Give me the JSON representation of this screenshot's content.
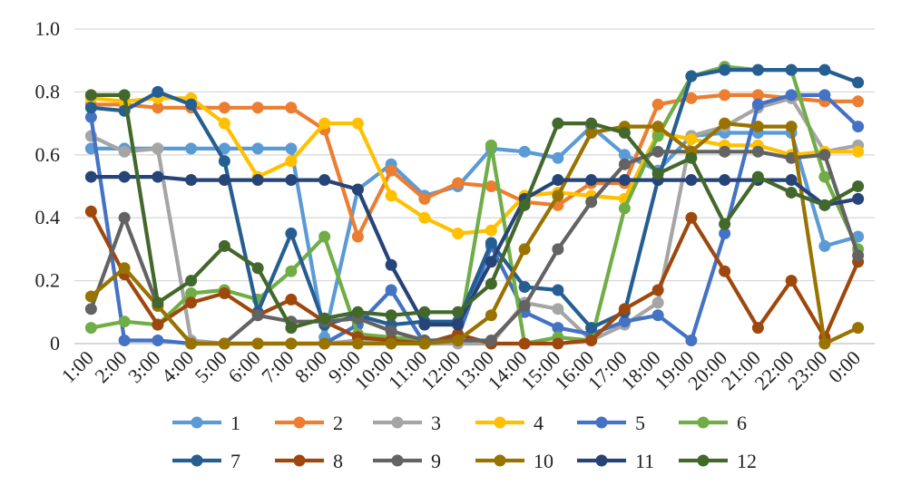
{
  "chart_data": {
    "type": "line",
    "title": "",
    "xlabel": "",
    "ylabel": "",
    "ylim": [
      0,
      1.0
    ],
    "yticks": [
      "0",
      "0.2",
      "0.4",
      "0.6",
      "0.8",
      "1.0"
    ],
    "grid": true,
    "legend_position": "bottom",
    "x": [
      "1:00",
      "2:00",
      "3:00",
      "4:00",
      "5:00",
      "6:00",
      "7:00",
      "8:00",
      "9:00",
      "10:00",
      "11:00",
      "12:00",
      "13:00",
      "14:00",
      "15:00",
      "16:00",
      "17:00",
      "18:00",
      "19:00",
      "20:00",
      "21:00",
      "22:00",
      "23:00",
      "0:00"
    ],
    "series": [
      {
        "name": "1",
        "color": "#5B9BD5",
        "values": [
          0.62,
          0.62,
          0.62,
          0.62,
          0.62,
          0.62,
          0.62,
          0.02,
          0.49,
          0.57,
          0.47,
          0.5,
          0.62,
          0.61,
          0.59,
          0.69,
          0.6,
          0.55,
          0.66,
          0.67,
          0.67,
          0.67,
          0.31,
          0.34
        ]
      },
      {
        "name": "2",
        "color": "#ED7D31",
        "values": [
          0.76,
          0.76,
          0.75,
          0.75,
          0.75,
          0.75,
          0.75,
          0.68,
          0.34,
          0.55,
          0.46,
          0.51,
          0.5,
          0.45,
          0.44,
          0.51,
          0.51,
          0.76,
          0.78,
          0.79,
          0.79,
          0.78,
          0.77,
          0.77
        ]
      },
      {
        "name": "3",
        "color": "#A5A5A5",
        "values": [
          0.66,
          0.61,
          0.62,
          0.01,
          0.0,
          0.0,
          0.0,
          0.0,
          0.01,
          0.01,
          0.0,
          0.0,
          0.0,
          0.13,
          0.11,
          0.01,
          0.06,
          0.13,
          0.66,
          0.69,
          0.75,
          0.78,
          0.61,
          0.63
        ]
      },
      {
        "name": "4",
        "color": "#FFC000",
        "values": [
          0.78,
          0.77,
          0.78,
          0.78,
          0.7,
          0.53,
          0.58,
          0.7,
          0.7,
          0.47,
          0.4,
          0.35,
          0.36,
          0.47,
          0.48,
          0.47,
          0.46,
          0.67,
          0.65,
          0.63,
          0.63,
          0.6,
          0.61,
          0.61
        ]
      },
      {
        "name": "5",
        "color": "#4472C4",
        "values": [
          0.72,
          0.01,
          0.01,
          0.0,
          0.0,
          0.0,
          0.0,
          0.0,
          0.06,
          0.17,
          0.0,
          0.02,
          0.31,
          0.1,
          0.05,
          0.03,
          0.07,
          0.09,
          0.01,
          0.35,
          0.76,
          0.79,
          0.79,
          0.69
        ]
      },
      {
        "name": "6",
        "color": "#70AD47",
        "values": [
          0.05,
          0.07,
          0.06,
          0.16,
          0.17,
          0.14,
          0.23,
          0.34,
          0.03,
          0.02,
          0.01,
          0.01,
          0.63,
          0.0,
          0.02,
          0.01,
          0.43,
          0.66,
          0.85,
          0.88,
          0.87,
          0.87,
          0.53,
          0.3
        ]
      },
      {
        "name": "7",
        "color": "#255E91",
        "values": [
          0.75,
          0.74,
          0.8,
          0.76,
          0.58,
          0.1,
          0.35,
          0.06,
          0.09,
          0.06,
          0.07,
          0.07,
          0.32,
          0.18,
          0.17,
          0.05,
          0.1,
          0.52,
          0.85,
          0.87,
          0.87,
          0.87,
          0.87,
          0.83
        ]
      },
      {
        "name": "8",
        "color": "#9E480E",
        "values": [
          0.42,
          0.22,
          0.06,
          0.13,
          0.16,
          0.09,
          0.14,
          0.07,
          0.02,
          0.01,
          0.0,
          0.03,
          0.0,
          0.0,
          0.0,
          0.01,
          0.11,
          0.17,
          0.4,
          0.23,
          0.05,
          0.2,
          0.02,
          0.26
        ]
      },
      {
        "name": "9",
        "color": "#636363",
        "values": [
          0.11,
          0.4,
          0.12,
          0.0,
          0.0,
          0.09,
          0.07,
          0.07,
          0.08,
          0.04,
          0.01,
          0.01,
          0.01,
          0.12,
          0.3,
          0.45,
          0.57,
          0.61,
          0.61,
          0.61,
          0.61,
          0.59,
          0.6,
          0.28
        ]
      },
      {
        "name": "10",
        "color": "#997300",
        "values": [
          0.15,
          0.24,
          0.12,
          0.0,
          0.0,
          0.0,
          0.0,
          0.0,
          0.0,
          0.0,
          0.0,
          0.01,
          0.09,
          0.3,
          0.47,
          0.67,
          0.69,
          0.69,
          0.61,
          0.7,
          0.69,
          0.69,
          0.0,
          0.05
        ]
      },
      {
        "name": "11",
        "color": "#264478",
        "values": [
          0.53,
          0.53,
          0.53,
          0.52,
          0.52,
          0.52,
          0.52,
          0.52,
          0.49,
          0.25,
          0.06,
          0.06,
          0.26,
          0.46,
          0.52,
          0.52,
          0.52,
          0.52,
          0.52,
          0.52,
          0.52,
          0.52,
          0.44,
          0.46
        ]
      },
      {
        "name": "12",
        "color": "#43682B",
        "values": [
          0.79,
          0.79,
          0.13,
          0.2,
          0.31,
          0.24,
          0.05,
          0.08,
          0.1,
          0.09,
          0.1,
          0.1,
          0.19,
          0.44,
          0.7,
          0.7,
          0.67,
          0.54,
          0.59,
          0.38,
          0.53,
          0.48,
          0.44,
          0.5
        ]
      }
    ]
  }
}
